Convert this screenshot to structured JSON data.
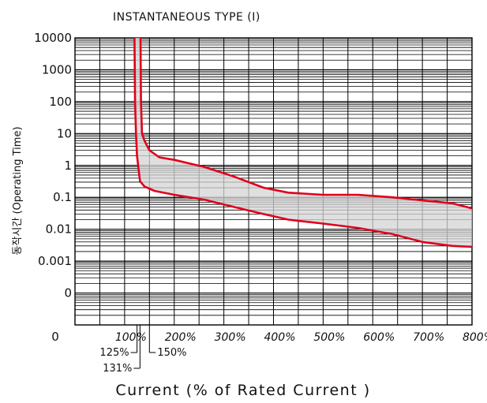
{
  "chart_data": {
    "type": "area",
    "title": "INSTANTANEOUS TYPE (I)",
    "xlabel": "Current (% of Rated Current )",
    "ylabel": "동작시간 (Operating Time)",
    "x_tick_labels": [
      "100%",
      "200%",
      "300%",
      "400%",
      "500%",
      "600%",
      "700%",
      "800%"
    ],
    "x_ticks": [
      100,
      200,
      300,
      400,
      500,
      600,
      700,
      800
    ],
    "y_tick_labels": [
      "10000",
      "1000",
      "100",
      "10",
      "1",
      "0.1",
      "0.01",
      "0.001",
      "0"
    ],
    "y_ticks": [
      10000,
      1000,
      100,
      10,
      1,
      0.1,
      0.01,
      0.001,
      0.0001
    ],
    "y_scale": "log",
    "xlim": [
      0,
      800
    ],
    "ylim": [
      1e-05,
      10000
    ],
    "grid": true,
    "band_fill": "#d4d4d4",
    "curve_color": "#e0001a",
    "markers": [
      {
        "label": "125%",
        "x": 125
      },
      {
        "label": "131%",
        "x": 131
      },
      {
        "label": "150%",
        "x": 150
      }
    ],
    "series": [
      {
        "x": [
          120,
          121,
          123,
          125,
          128,
          131,
          140,
          160,
          200,
          260,
          320,
          380,
          430,
          500,
          570,
          640,
          700,
          760,
          800
        ],
        "y": [
          10000,
          100,
          10,
          2,
          0.8,
          0.32,
          0.22,
          0.16,
          0.12,
          0.085,
          0.05,
          0.03,
          0.02,
          0.015,
          0.011,
          0.007,
          0.004,
          0.003,
          0.0028
        ]
      },
      {
        "x": [
          132,
          133,
          135,
          140,
          150,
          170,
          200,
          260,
          320,
          380,
          430,
          500,
          570,
          640,
          700,
          760,
          800
        ],
        "y": [
          10000,
          100,
          10,
          6,
          3,
          1.8,
          1.5,
          0.9,
          0.45,
          0.2,
          0.14,
          0.12,
          0.12,
          0.1,
          0.08,
          0.065,
          0.045
        ]
      }
    ]
  }
}
